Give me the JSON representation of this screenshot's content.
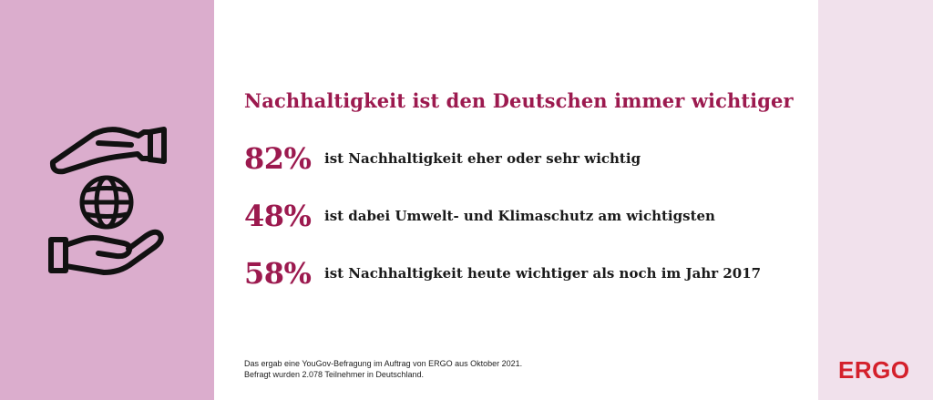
{
  "headline": "Nachhaltigkeit ist den Deutschen immer wichtiger",
  "stats": [
    {
      "value": "82%",
      "text": "ist Nachhaltigkeit eher oder sehr wichtig"
    },
    {
      "value": "48%",
      "text": "ist dabei Umwelt- und Klimaschutz am wichtigsten"
    },
    {
      "value": "58%",
      "text": "ist Nachhaltigkeit heute wichtiger als noch im Jahr 2017"
    }
  ],
  "footnote": {
    "line1": "Das ergab eine YouGov-Befragung im Auftrag von ERGO aus Oktober 2021.",
    "line2": "Befragt wurden 2.078 Teilnehmer in Deutschland."
  },
  "logo": "ERGO",
  "icon": "hands-holding-globe-icon",
  "colors": {
    "accent": "#9c1a4f",
    "left_panel": "#dbadcd",
    "right_panel": "#f1e1ec",
    "logo": "#d4202b",
    "text": "#1a1a1a"
  }
}
